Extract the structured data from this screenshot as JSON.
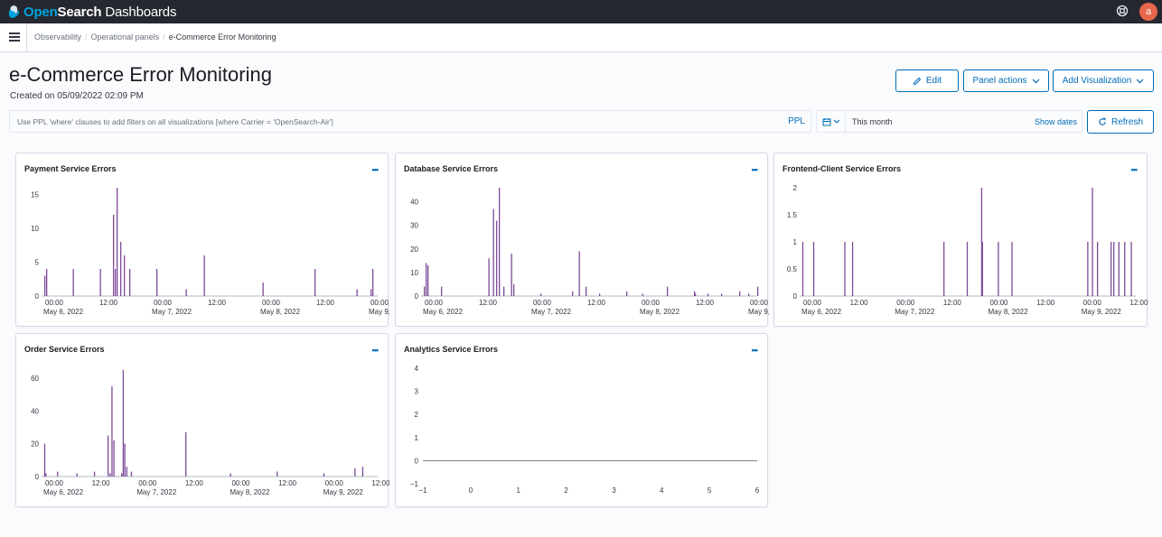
{
  "header": {
    "brand_open": "Open",
    "brand_search": "Search",
    "brand_dashboards": "Dashboards",
    "avatar_initial": "a",
    "help_icon": "help-icon"
  },
  "breadcrumbs": [
    "Observability",
    "Operational panels",
    "e-Commerce Error Monitoring"
  ],
  "page": {
    "title": "e-Commerce Error Monitoring",
    "created": "Created on 05/09/2022 02:09 PM"
  },
  "actions": {
    "edit": "Edit",
    "panel_actions": "Panel actions",
    "add_visualization": "Add Visualization",
    "refresh": "Refresh"
  },
  "query": {
    "placeholder": "Use PPL 'where' clauses to add filters on all visualizations [where Carrier = 'OpenSearch-Air']",
    "language": "PPL",
    "date_range": "This month",
    "show_dates": "Show dates"
  },
  "colors": {
    "accent": "#006bb8",
    "series": "#7d4a97",
    "header_bg": "#25282f"
  },
  "chart_data": [
    {
      "type": "bar",
      "title": "Payment Service Errors",
      "xticks": [
        "00:00",
        "12:00",
        "00:00",
        "12:00",
        "00:00",
        "12:00",
        "00:00"
      ],
      "xdates": [
        "May 6, 2022",
        "May 7, 2022",
        "May 8, 2022",
        "May 9, 2022"
      ],
      "yticks": [
        0,
        5,
        10,
        15
      ],
      "ylim": [
        0,
        16
      ],
      "x_hours": [
        0.2,
        0.6,
        6.5,
        12.5,
        15.4,
        15.8,
        16.2,
        17.0,
        17.8,
        19.0,
        25.0,
        31.5,
        35.5,
        48.5,
        60.0,
        69.3,
        72.4,
        72.8
      ],
      "values": [
        3,
        4,
        4,
        4,
        12,
        4,
        16,
        8,
        6,
        4,
        4,
        1,
        6,
        2,
        4,
        1,
        1,
        4
      ]
    },
    {
      "type": "bar",
      "title": "Database Service Errors",
      "xticks": [
        "00:00",
        "12:00",
        "00:00",
        "12:00",
        "00:00",
        "12:00",
        "00:00"
      ],
      "xdates": [
        "May 6, 2022",
        "May 7, 2022",
        "May 8, 2022",
        "May 9, 2022"
      ],
      "yticks": [
        0,
        10,
        20,
        30,
        40
      ],
      "ylim": [
        0,
        46
      ],
      "x_hours": [
        0.2,
        0.6,
        1.0,
        4.0,
        14.5,
        15.5,
        16.2,
        16.8,
        17.8,
        19.5,
        20.0,
        26.0,
        33.0,
        34.5,
        36.0,
        39.0,
        45.0,
        48.5,
        54.0,
        60.0,
        60.2,
        63.0,
        66.0,
        70.0,
        72.0,
        74.0
      ],
      "values": [
        4,
        14,
        13,
        4,
        16,
        37,
        32,
        46,
        4,
        18,
        5,
        1,
        2,
        19,
        4,
        1,
        2,
        1,
        4,
        2,
        1,
        1,
        1,
        2,
        1,
        4
      ]
    },
    {
      "type": "bar",
      "title": "Frontend-Client Service Errors",
      "xticks": [
        "00:00",
        "12:00",
        "00:00",
        "12:00",
        "00:00",
        "12:00",
        "00:00",
        "12:00"
      ],
      "xdates": [
        "May 6, 2022",
        "May 7, 2022",
        "May 8, 2022",
        "May 9, 2022"
      ],
      "yticks": [
        0,
        0.5,
        1,
        1.5,
        2
      ],
      "ylim": [
        0,
        2
      ],
      "x_hours": [
        0.2,
        3.0,
        11.0,
        13.0,
        36.5,
        42.5,
        46.2,
        46.4,
        50.5,
        54.0,
        73.5,
        74.7,
        76.0,
        79.5,
        80.2,
        81.5,
        83.0,
        84.7
      ],
      "values": [
        1,
        1,
        1,
        1,
        1,
        1,
        2,
        1,
        1,
        1,
        1,
        2,
        1,
        1,
        1,
        1,
        1,
        1
      ]
    },
    {
      "type": "bar",
      "title": "Order Service Errors",
      "xticks": [
        "00:00",
        "12:00",
        "00:00",
        "12:00",
        "00:00",
        "12:00",
        "00:00",
        "12:00"
      ],
      "xdates": [
        "May 6, 2022",
        "May 7, 2022",
        "May 8, 2022",
        "May 9, 2022"
      ],
      "yticks": [
        0,
        20,
        40,
        60
      ],
      "ylim": [
        0,
        66
      ],
      "x_hours": [
        0.2,
        0.5,
        3.5,
        8.5,
        13.0,
        16.5,
        17.0,
        17.5,
        18.0,
        20.0,
        20.4,
        20.8,
        21.3,
        22.5,
        36.5,
        48.0,
        60.0,
        72.0,
        80.0,
        82.0
      ],
      "values": [
        20,
        2,
        3,
        2,
        3,
        25,
        2,
        55,
        22,
        2,
        65,
        20,
        6,
        3,
        27,
        2,
        3,
        2,
        5,
        6
      ]
    },
    {
      "type": "line",
      "title": "Analytics Service Errors",
      "xticks": [
        -1,
        0,
        1,
        2,
        3,
        4,
        5,
        6
      ],
      "yticks": [
        -1,
        0,
        1,
        2,
        3,
        4
      ],
      "xlim": [
        -1,
        6
      ],
      "ylim": [
        -1,
        4
      ],
      "series": [
        {
          "x": [
            -1,
            6
          ],
          "y": [
            0,
            0
          ]
        }
      ]
    }
  ]
}
